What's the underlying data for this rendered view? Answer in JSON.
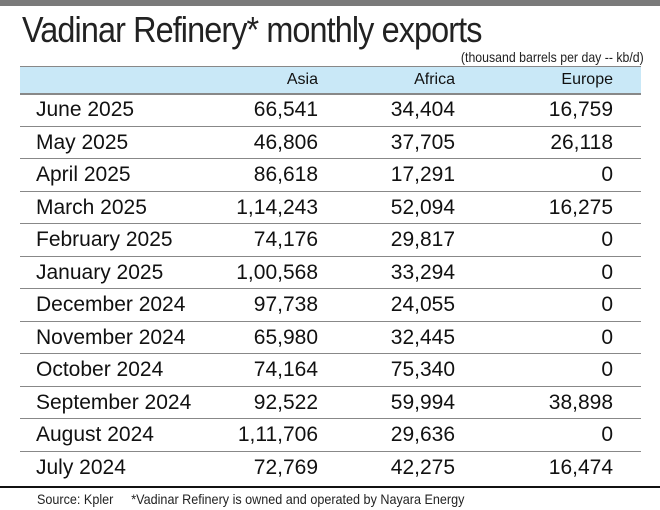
{
  "title": "Vadinar Refinery* monthly exports",
  "subtitle": "(thousand barrels per day -- kb/d)",
  "columns": [
    "",
    "Asia",
    "Africa",
    "Europe"
  ],
  "rows": [
    [
      "June 2025",
      "66,541",
      "34,404",
      "16,759"
    ],
    [
      "May 2025",
      "46,806",
      "37,705",
      "26,118"
    ],
    [
      "April 2025",
      "86,618",
      "17,291",
      "0"
    ],
    [
      "March 2025",
      "1,14,243",
      "52,094",
      "16,275"
    ],
    [
      "February 2025",
      "74,176",
      "29,817",
      "0"
    ],
    [
      "January 2025",
      "1,00,568",
      "33,294",
      "0"
    ],
    [
      "December 2024",
      "97,738",
      "24,055",
      "0"
    ],
    [
      "November 2024",
      "65,980",
      "32,445",
      "0"
    ],
    [
      "October 2024",
      "74,164",
      "75,340",
      "0"
    ],
    [
      "September 2024",
      "92,522",
      "59,994",
      "38,898"
    ],
    [
      "August 2024",
      "1,11,706",
      "29,636",
      "0"
    ],
    [
      "July 2024",
      "72,769",
      "42,275",
      "16,474"
    ]
  ],
  "footer": {
    "source": "Source: Kpler",
    "note": "*Vadinar Refinery is owned and operated by Nayara Energy"
  },
  "colors": {
    "header_bg": "#c9e8f7",
    "top_bar": "#7a7a7a"
  }
}
